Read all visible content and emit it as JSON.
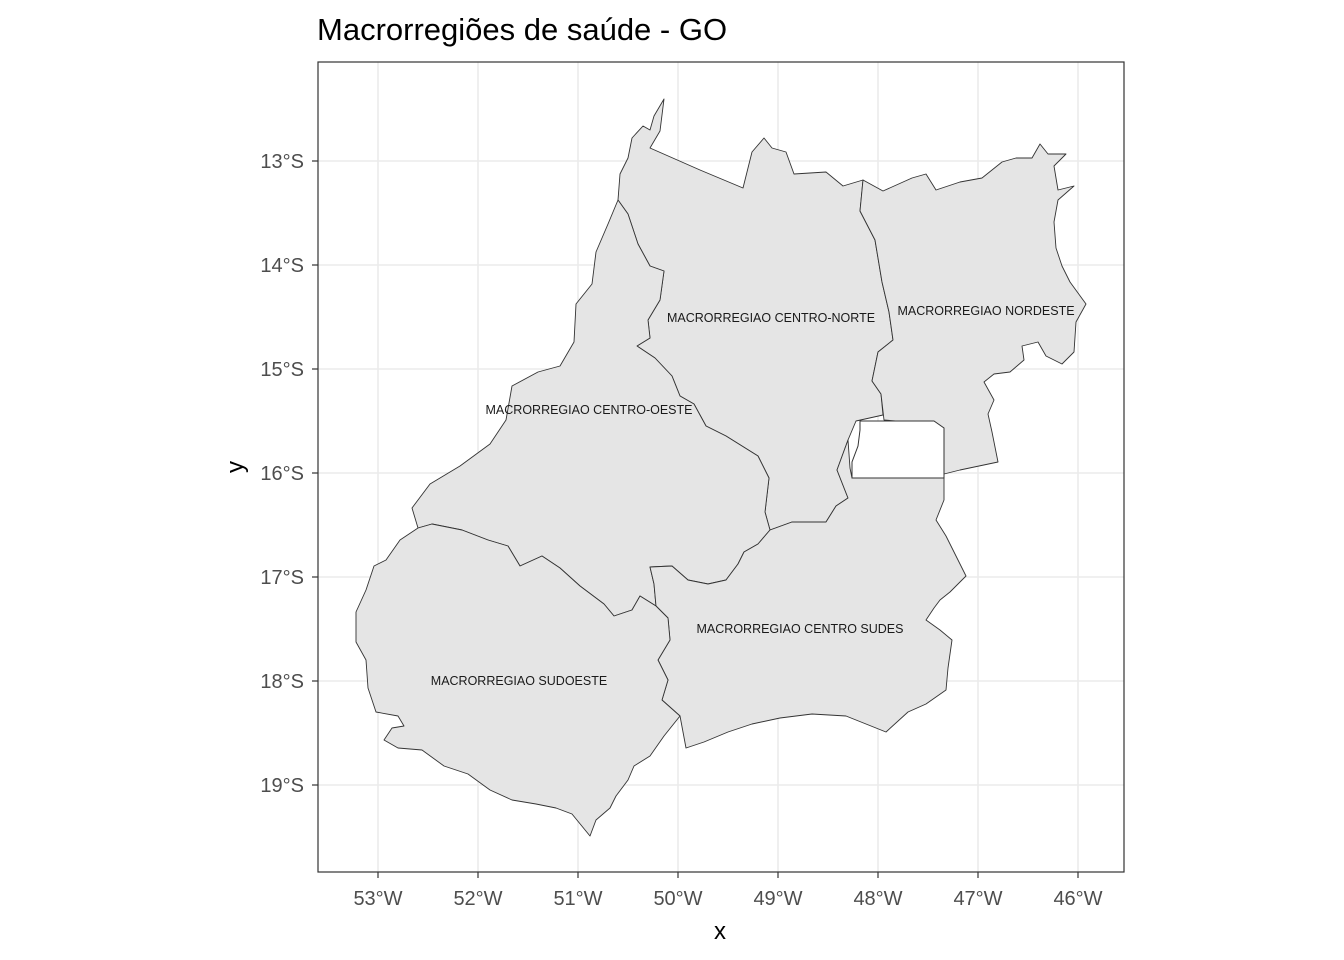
{
  "map": {
    "title": "Macrorregiões de saúde - GO",
    "xlabel": "x",
    "ylabel": "y",
    "x_ticks": [
      {
        "value": -53,
        "label": "53°W"
      },
      {
        "value": -52,
        "label": "52°W"
      },
      {
        "value": -51,
        "label": "51°W"
      },
      {
        "value": -50,
        "label": "50°W"
      },
      {
        "value": -49,
        "label": "49°W"
      },
      {
        "value": -48,
        "label": "48°W"
      },
      {
        "value": -47,
        "label": "47°W"
      },
      {
        "value": -46,
        "label": "46°W"
      }
    ],
    "y_ticks": [
      {
        "value": -13,
        "label": "13°S"
      },
      {
        "value": -14,
        "label": "14°S"
      },
      {
        "value": -15,
        "label": "15°S"
      },
      {
        "value": -16,
        "label": "16°S"
      },
      {
        "value": -17,
        "label": "17°S"
      },
      {
        "value": -18,
        "label": "18°S"
      },
      {
        "value": -19,
        "label": "19°S"
      }
    ],
    "regions": [
      {
        "name": "MACRORREGIAO CENTRO-NORTE"
      },
      {
        "name": "MACRORREGIAO NORDESTE"
      },
      {
        "name": "MACRORREGIAO CENTRO-OESTE"
      },
      {
        "name": "MACRORREGIAO CENTRO SUDES"
      },
      {
        "name": "MACRORREGIAO SUDOESTE"
      }
    ],
    "colors": {
      "region_fill": "#e5e5e5",
      "region_stroke": "#333333",
      "grid": "#ebebeb",
      "background": "#ffffff"
    },
    "grid": true,
    "theme": "bw"
  }
}
